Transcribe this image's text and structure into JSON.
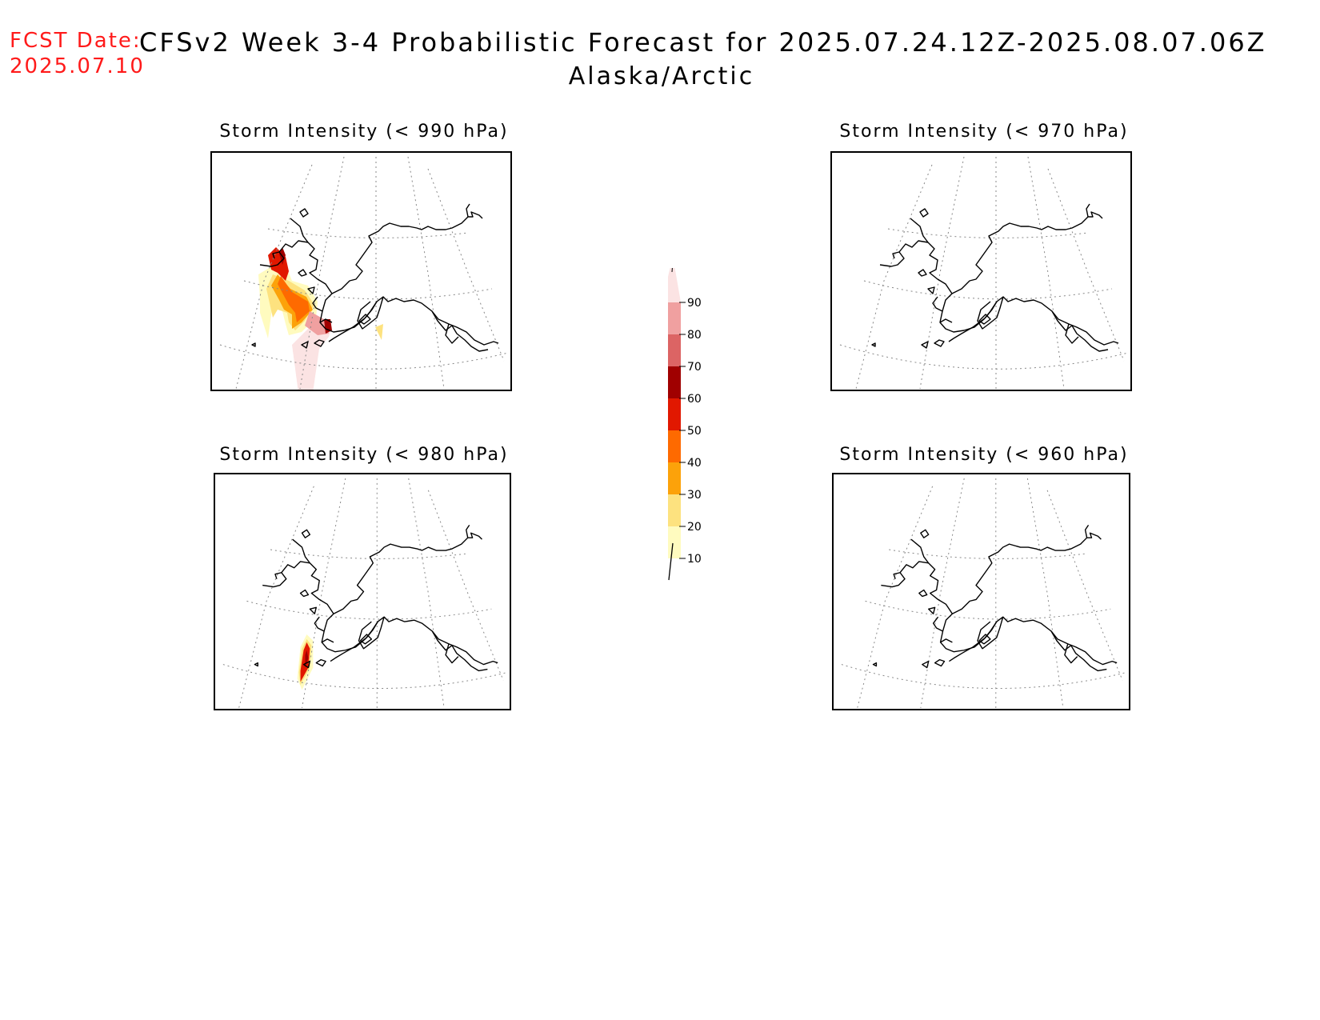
{
  "header": {
    "fcst_label": "FCST Date:",
    "fcst_date": "2025.07.10",
    "title": "CFSv2 Week 3-4 Probabilistic Forecast for 2025.07.24.12Z-2025.08.07.06Z",
    "region": "Alaska/Arctic"
  },
  "panels": {
    "p990": {
      "title": "Storm Intensity (< 990 hPa)"
    },
    "p970": {
      "title": "Storm Intensity (< 970 hPa)"
    },
    "p980": {
      "title": "Storm Intensity (< 980 hPa)"
    },
    "p960": {
      "title": "Storm Intensity (< 960 hPa)"
    }
  },
  "colorbar": {
    "levels": [
      "10",
      "20",
      "30",
      "40",
      "50",
      "60",
      "70",
      "80",
      "90"
    ],
    "colors": [
      "#fffbbf",
      "#fde27f",
      "#fca20a",
      "#fe6a00",
      "#e11800",
      "#a00000",
      "#dc6464",
      "#f0a0a0",
      "#fbe3e3"
    ]
  }
}
